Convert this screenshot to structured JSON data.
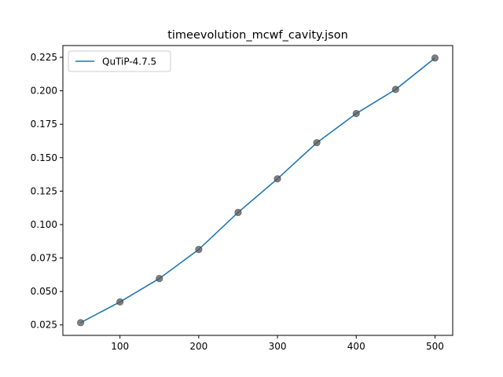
{
  "chart_data": {
    "type": "line",
    "title": "timeevolution_mcwf_cavity.json",
    "xlabel": "",
    "ylabel": "",
    "xlim": [
      27.5,
      522.5
    ],
    "ylim": [
      0.0172,
      0.2338
    ],
    "x_ticks": [
      100,
      200,
      300,
      400,
      500
    ],
    "x_tick_labels": [
      "100",
      "200",
      "300",
      "400",
      "500"
    ],
    "y_ticks": [
      0.025,
      0.05,
      0.075,
      0.1,
      0.125,
      0.15,
      0.175,
      0.2,
      0.225
    ],
    "y_tick_labels": [
      "0.025",
      "0.050",
      "0.075",
      "0.100",
      "0.125",
      "0.150",
      "0.175",
      "0.200",
      "0.225"
    ],
    "grid": false,
    "legend_position": "upper-left",
    "series": [
      {
        "name": "QuTiP-4.7.5",
        "color": "#1f77b4",
        "marker_color": "#555555",
        "x": [
          50,
          100,
          150,
          200,
          250,
          300,
          350,
          400,
          450,
          500
        ],
        "y": [
          0.0267,
          0.0422,
          0.0597,
          0.0814,
          0.1091,
          0.1342,
          0.1612,
          0.183,
          0.201,
          0.2245
        ]
      }
    ]
  }
}
